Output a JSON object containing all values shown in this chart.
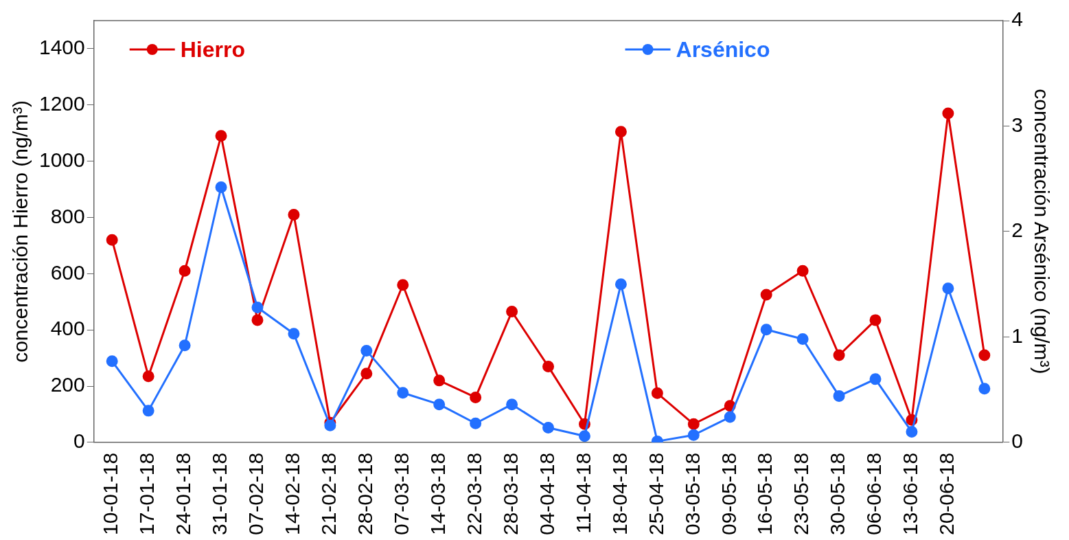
{
  "chart_data": {
    "type": "line",
    "xlabel": null,
    "ylabel": "concentración Hierro (ng/m³)",
    "y2label": "concentración Arsénico (ng/m³)",
    "categories": [
      "10-01-18",
      "17-01-18",
      "24-01-18",
      "31-01-18",
      "07-02-18",
      "14-02-18",
      "21-02-18",
      "28-02-18",
      "07-03-18",
      "14-03-18",
      "22-03-18",
      "28-03-18",
      "04-04-18",
      "11-04-18",
      "18-04-18",
      "25-04-18",
      "03-05-18",
      "09-05-18",
      "16-05-18",
      "23-05-18",
      "30-05-18",
      "06-06-18",
      "13-06-18",
      "20-06-18",
      null
    ],
    "ylim": [
      0,
      1500
    ],
    "yticks": [
      0,
      200,
      400,
      600,
      800,
      1000,
      1200,
      1400
    ],
    "y2lim": [
      0,
      4
    ],
    "y2ticks": [
      0,
      1,
      2,
      3,
      4
    ],
    "series": [
      {
        "name": "Hierro",
        "color": "#dd0000",
        "values": [
          720,
          235,
          610,
          1090,
          435,
          810,
          70,
          245,
          560,
          220,
          160,
          465,
          270,
          65,
          1105,
          175,
          65,
          130,
          525,
          610,
          310,
          435,
          80,
          1170,
          310
        ]
      },
      {
        "name": "Arsénico",
        "color": "#2370ff",
        "axis": "y2",
        "values": [
          0.77,
          0.3,
          0.92,
          2.42,
          1.28,
          1.03,
          0.16,
          0.87,
          0.47,
          0.36,
          0.18,
          0.36,
          0.14,
          0.06,
          1.5,
          0.01,
          0.07,
          0.24,
          1.07,
          0.98,
          0.44,
          0.6,
          0.1,
          1.46,
          0.51
        ]
      }
    ],
    "legend": "top",
    "marker": "circle",
    "line_style": "solid",
    "grid": false
  }
}
